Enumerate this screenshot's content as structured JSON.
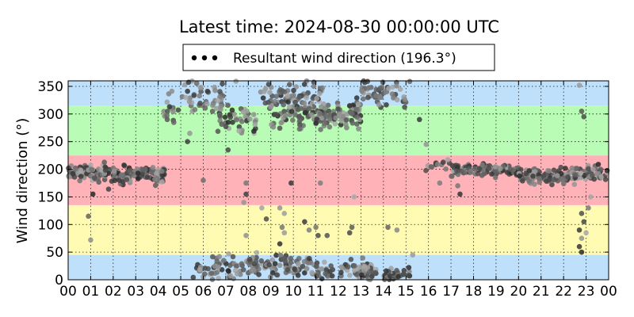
{
  "chart_data": {
    "type": "scatter",
    "title": "Latest time: 2024-08-30 00:00:00 UTC",
    "xlabel": "",
    "ylabel": "Wind direction (°)",
    "xlim": [
      0,
      24
    ],
    "ylim": [
      0,
      360
    ],
    "x_tick_labels": [
      "00",
      "01",
      "02",
      "03",
      "04",
      "05",
      "06",
      "07",
      "08",
      "09",
      "10",
      "11",
      "12",
      "13",
      "14",
      "15",
      "16",
      "17",
      "18",
      "19",
      "20",
      "21",
      "22",
      "23",
      "00"
    ],
    "y_ticks": [
      0,
      50,
      100,
      150,
      200,
      250,
      300,
      350
    ],
    "grid": true,
    "legend_position": "top-center",
    "bands": [
      {
        "from": 0,
        "to": 45,
        "color": "#bfe0fb"
      },
      {
        "from": 45,
        "to": 135,
        "color": "#fffbb3"
      },
      {
        "from": 135,
        "to": 225,
        "color": "#ffb3b8"
      },
      {
        "from": 225,
        "to": 315,
        "color": "#b8fcb5"
      },
      {
        "from": 315,
        "to": 360,
        "color": "#bfe0fb"
      }
    ],
    "series": [
      {
        "name": "Resultant wind direction (196.3°)",
        "marker": "circle",
        "clusters": [
          {
            "hours": [
              0.0,
              1.0
            ],
            "center": 195,
            "spread": 12,
            "count": 45
          },
          {
            "hours": [
              1.0,
              2.0
            ],
            "center": 190,
            "spread": 18,
            "count": 40
          },
          {
            "hours": [
              2.0,
              4.3
            ],
            "center": 192,
            "spread": 15,
            "count": 110
          },
          {
            "hours": [
              4.2,
              5.0
            ],
            "center": 310,
            "spread": 30,
            "count": 14
          },
          {
            "hours": [
              5.0,
              7.0
            ],
            "center": 330,
            "spread": 30,
            "count": 45
          },
          {
            "hours": [
              5.5,
              8.0
            ],
            "center": 20,
            "spread": 20,
            "count": 60
          },
          {
            "hours": [
              6.5,
              8.5
            ],
            "center": 290,
            "spread": 25,
            "count": 40
          },
          {
            "hours": [
              8.0,
              11.0
            ],
            "center": 25,
            "spread": 18,
            "count": 90
          },
          {
            "hours": [
              8.5,
              11.5
            ],
            "center": 330,
            "spread": 25,
            "count": 80
          },
          {
            "hours": [
              9.0,
              11.5
            ],
            "center": 295,
            "spread": 18,
            "count": 60
          },
          {
            "hours": [
              11.0,
              13.0
            ],
            "center": 300,
            "spread": 25,
            "count": 80
          },
          {
            "hours": [
              11.0,
              13.5
            ],
            "center": 18,
            "spread": 15,
            "count": 60
          },
          {
            "hours": [
              13.0,
              15.0
            ],
            "center": 335,
            "spread": 20,
            "count": 55
          },
          {
            "hours": [
              13.0,
              15.2
            ],
            "center": 10,
            "spread": 12,
            "count": 45
          },
          {
            "hours": [
              15.8,
              17.0
            ],
            "center": 205,
            "spread": 12,
            "count": 12
          },
          {
            "hours": [
              17.0,
              20.0
            ],
            "center": 198,
            "spread": 10,
            "count": 110
          },
          {
            "hours": [
              20.0,
              23.0
            ],
            "center": 188,
            "spread": 12,
            "count": 130
          },
          {
            "hours": [
              23.0,
              24.0
            ],
            "center": 195,
            "spread": 15,
            "count": 35
          }
        ],
        "scattered": [
          [
            0.9,
            115
          ],
          [
            1.0,
            72
          ],
          [
            1.1,
            155
          ],
          [
            4.4,
            290
          ],
          [
            5.3,
            250
          ],
          [
            5.4,
            265
          ],
          [
            6.0,
            180
          ],
          [
            7.1,
            235
          ],
          [
            7.3,
            285
          ],
          [
            7.9,
            175
          ],
          [
            7.9,
            155
          ],
          [
            7.8,
            140
          ],
          [
            7.9,
            80
          ],
          [
            8.6,
            130
          ],
          [
            8.8,
            110
          ],
          [
            9.4,
            130
          ],
          [
            9.5,
            95
          ],
          [
            9.6,
            120
          ],
          [
            9.6,
            85
          ],
          [
            9.4,
            65
          ],
          [
            9.9,
            175
          ],
          [
            10.5,
            105
          ],
          [
            10.7,
            90
          ],
          [
            11.0,
            95
          ],
          [
            11.1,
            80
          ],
          [
            11.2,
            175
          ],
          [
            11.5,
            80
          ],
          [
            12.5,
            85
          ],
          [
            12.7,
            150
          ],
          [
            12.6,
            95
          ],
          [
            14.2,
            95
          ],
          [
            14.6,
            90
          ],
          [
            15.3,
            45
          ],
          [
            15.6,
            290
          ],
          [
            15.9,
            245
          ],
          [
            16.5,
            175
          ],
          [
            17.3,
            170
          ],
          [
            17.4,
            155
          ],
          [
            22.7,
            352
          ],
          [
            22.8,
            305
          ],
          [
            22.9,
            295
          ],
          [
            22.8,
            120
          ],
          [
            22.9,
            105
          ],
          [
            22.7,
            90
          ],
          [
            22.8,
            75
          ],
          [
            22.7,
            60
          ],
          [
            22.8,
            50
          ],
          [
            23.0,
            85
          ],
          [
            23.1,
            130
          ],
          [
            23.2,
            150
          ]
        ]
      }
    ]
  }
}
